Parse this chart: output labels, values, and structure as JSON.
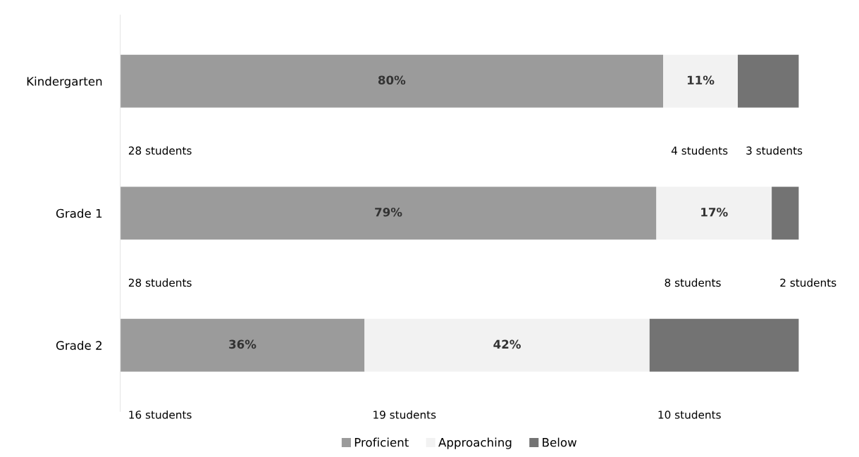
{
  "chart_data": {
    "type": "bar",
    "orientation": "horizontal",
    "stacked": true,
    "categories": [
      "Kindergarten",
      "Grade 1",
      "Grade 2"
    ],
    "series": [
      {
        "name": "Proficient",
        "color": "#9b9b9b",
        "values": [
          80,
          79,
          36
        ],
        "value_labels": [
          "80%",
          "79%",
          "36%"
        ]
      },
      {
        "name": "Approaching",
        "color": "#f2f2f2",
        "values": [
          11,
          17,
          42
        ],
        "value_labels": [
          "11%",
          "17%",
          "42%"
        ]
      },
      {
        "name": "Below",
        "color": "#737373",
        "values": [
          9,
          4,
          22
        ],
        "value_labels": [
          null,
          null,
          null
        ]
      }
    ],
    "xlim": [
      0,
      100
    ],
    "tick_labels": "y",
    "grid": false,
    "legend": "bottom",
    "annotations": [
      "28 students",
      "4 students",
      "3 students",
      "28 students",
      "8 students",
      "2 students",
      "16 students",
      "19 students",
      "10 students"
    ]
  }
}
